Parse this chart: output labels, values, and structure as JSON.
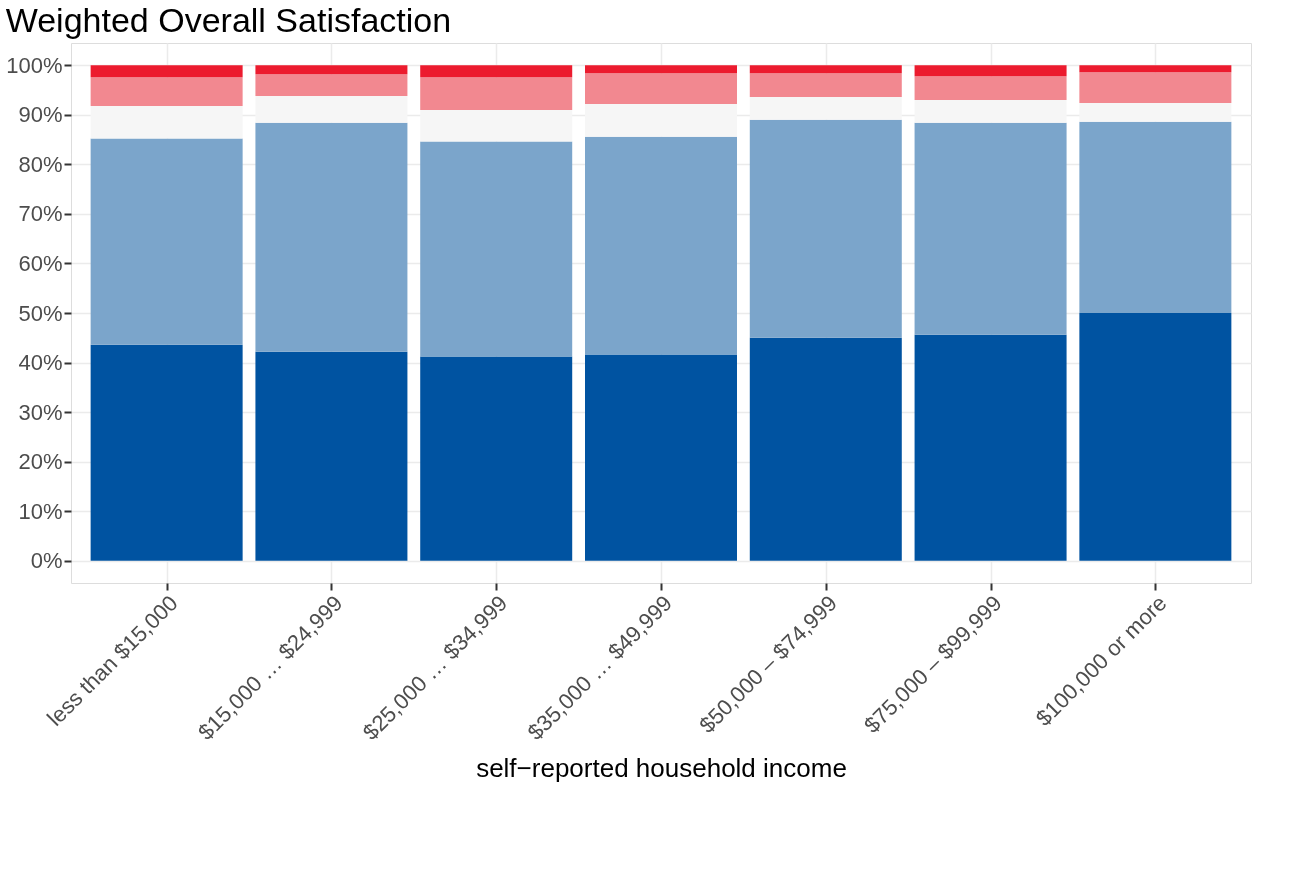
{
  "chart_data": {
    "type": "bar",
    "title": "Weighted Overall Satisfaction",
    "xlabel": "self−reported household income",
    "stacked": true,
    "legend": false,
    "grid": true,
    "categories": [
      "less than $15,000",
      "$15,000 … $24,999",
      "$25,000 … $34,999",
      "$35,000 … $49,999",
      "$50,000 – $74,999",
      "$75,000 – $99,999",
      "$100,000 or more"
    ],
    "series": [
      {
        "color": "#0053a1",
        "values": [
          43.6,
          42.2,
          41.2,
          41.6,
          45.0,
          45.6,
          50.0
        ]
      },
      {
        "color": "#7ba5cb",
        "values": [
          41.6,
          46.2,
          43.4,
          44.0,
          44.0,
          42.8,
          38.6
        ]
      },
      {
        "color": "#f6f6f6",
        "values": [
          6.6,
          5.4,
          6.4,
          6.6,
          4.6,
          4.6,
          3.8
        ]
      },
      {
        "color": "#f28890",
        "values": [
          5.8,
          4.4,
          6.6,
          6.2,
          4.8,
          4.8,
          6.2
        ]
      },
      {
        "color": "#ec1b2e",
        "values": [
          2.4,
          1.8,
          2.4,
          1.6,
          1.6,
          2.2,
          1.4
        ]
      }
    ],
    "ylim": [
      -4.5,
      104.5
    ],
    "yticks": [
      {
        "value": 0,
        "label": "0%"
      },
      {
        "value": 10,
        "label": "10%"
      },
      {
        "value": 20,
        "label": "20%"
      },
      {
        "value": 30,
        "label": "30%"
      },
      {
        "value": 40,
        "label": "40%"
      },
      {
        "value": 50,
        "label": "50%"
      },
      {
        "value": 60,
        "label": "60%"
      },
      {
        "value": 70,
        "label": "70%"
      },
      {
        "value": 80,
        "label": "80%"
      },
      {
        "value": 90,
        "label": "90%"
      },
      {
        "value": 100,
        "label": "100%"
      }
    ]
  }
}
